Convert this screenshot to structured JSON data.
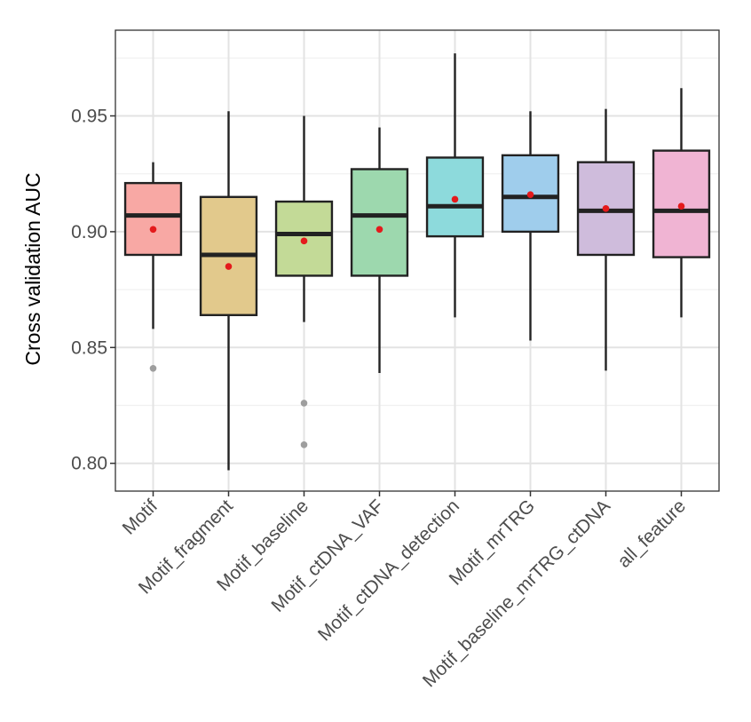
{
  "chart_data": {
    "type": "boxplot",
    "title": "",
    "xlabel": "",
    "ylabel": "Cross validation AUC",
    "ylim": [
      0.788,
      0.987
    ],
    "y_ticks": [
      0.8,
      0.85,
      0.9,
      0.95
    ],
    "y_tick_labels": [
      "0.80",
      "0.85",
      "0.90",
      "0.95"
    ],
    "grid": true,
    "legend": "none",
    "mean_color": "#e41a1c",
    "outlier_color": "#9e9e9e",
    "categories": [
      "Motif",
      "Motif_fragment",
      "Motif_baseline",
      "Motif_ctDNA_VAF",
      "Motif_ctDNA_detection",
      "Motif_mrTRG",
      "Motif_baseline_mrTRG_ctDNA",
      "all_feature"
    ],
    "boxes": [
      {
        "name": "Motif",
        "whisker_low": 0.858,
        "q1": 0.89,
        "median": 0.907,
        "q3": 0.921,
        "whisker_high": 0.93,
        "mean": 0.901,
        "outliers": [
          0.841
        ],
        "color": "#f8a8a4"
      },
      {
        "name": "Motif_fragment",
        "whisker_low": 0.797,
        "q1": 0.864,
        "median": 0.89,
        "q3": 0.915,
        "whisker_high": 0.952,
        "mean": 0.885,
        "outliers": [],
        "color": "#e2c98c"
      },
      {
        "name": "Motif_baseline",
        "whisker_low": 0.861,
        "q1": 0.881,
        "median": 0.899,
        "q3": 0.913,
        "whisker_high": 0.95,
        "mean": 0.896,
        "outliers": [
          0.826,
          0.808
        ],
        "color": "#c3da97"
      },
      {
        "name": "Motif_ctDNA_VAF",
        "whisker_low": 0.839,
        "q1": 0.881,
        "median": 0.907,
        "q3": 0.927,
        "whisker_high": 0.945,
        "mean": 0.901,
        "outliers": [],
        "color": "#9dd8ae"
      },
      {
        "name": "Motif_ctDNA_detection",
        "whisker_low": 0.863,
        "q1": 0.898,
        "median": 0.911,
        "q3": 0.932,
        "whisker_high": 0.977,
        "mean": 0.914,
        "outliers": [],
        "color": "#8ddadc"
      },
      {
        "name": "Motif_mrTRG",
        "whisker_low": 0.853,
        "q1": 0.9,
        "median": 0.915,
        "q3": 0.933,
        "whisker_high": 0.952,
        "mean": 0.916,
        "outliers": [],
        "color": "#9fcdec"
      },
      {
        "name": "Motif_baseline_mrTRG_ctDNA",
        "whisker_low": 0.84,
        "q1": 0.89,
        "median": 0.909,
        "q3": 0.93,
        "whisker_high": 0.953,
        "mean": 0.91,
        "outliers": [],
        "color": "#cfbcdc"
      },
      {
        "name": "all_feature",
        "whisker_low": 0.863,
        "q1": 0.889,
        "median": 0.909,
        "q3": 0.935,
        "whisker_high": 0.962,
        "mean": 0.911,
        "outliers": [],
        "color": "#f0b4d3"
      }
    ]
  }
}
